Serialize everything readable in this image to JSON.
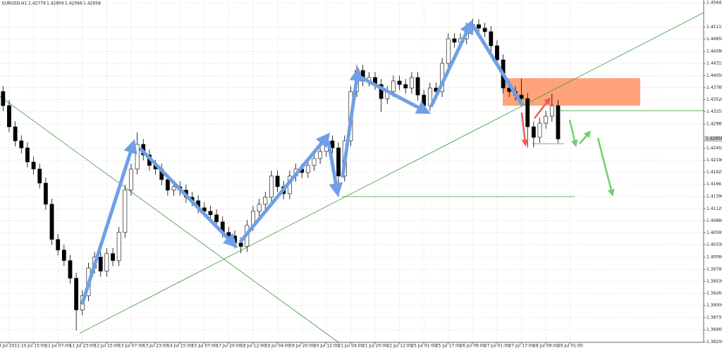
{
  "chart_data": {
    "type": "candlestick",
    "title": "EURUSD,H1",
    "header_values": [
      1.42779,
      1.42856,
      1.42566,
      1.42658
    ],
    "categories": [
      null,
      "8 Jul 2011",
      null,
      null,
      null,
      "10 Jul 15:00",
      null,
      null,
      null,
      "11 Jul 07:00",
      null,
      null,
      null,
      "11 Jul 23:00",
      null,
      null,
      null,
      "12 Jul 15:00",
      null,
      null,
      null,
      "13 Jul 07:00",
      null,
      null,
      null,
      "13 Jul 23:00",
      null,
      null,
      null,
      "14 Jul 15:00",
      null,
      null,
      null,
      "15 Jul 07:00",
      null,
      null,
      null,
      "17 Jul 20:00",
      null,
      null,
      null,
      "18 Jul 12:00",
      null,
      null,
      null,
      "19 Jul 04:00",
      null,
      null,
      null,
      "19 Jul 20:00",
      null,
      null,
      null,
      "20 Jul 12:00",
      null,
      null,
      null,
      "21 Jul 04:00",
      null,
      null,
      null,
      "21 Jul 20:00",
      null,
      null,
      null,
      "22 Jul 12:00",
      null,
      null,
      null,
      "25 Jul 01:00",
      null,
      null,
      null,
      "25 Jul 17:00",
      null,
      null,
      null,
      "26 Jul 09:00",
      null,
      null,
      null,
      "27 Jul 01:00",
      null,
      null,
      null,
      "27 Jul 17:00",
      null,
      null,
      null,
      "28 Jul 09:00",
      null,
      null,
      null,
      "29 Jul 01:00"
    ],
    "open": [
      1.437,
      1.4339,
      1.42925,
      1.42616,
      1.42461,
      1.42152,
      1.41997,
      1.41688,
      1.41224,
      1.4045,
      1.40218,
      1.39986,
      1.39599,
      1.38903,
      1.39213,
      1.39821,
      1.40063,
      1.39754,
      1.40141,
      1.39986,
      1.40605,
      1.41533,
      1.41997,
      1.42539,
      1.42307,
      1.42075,
      1.41997,
      1.41765,
      1.41533,
      1.4161,
      1.41533,
      1.41378,
      1.41301,
      1.41146,
      1.41069,
      1.40992,
      1.40837,
      1.40605,
      1.40528,
      1.40373,
      1.40296,
      1.4076,
      1.41069,
      1.41224,
      1.41378,
      1.41843,
      1.4161,
      1.41456,
      1.41843,
      1.41997,
      1.4192,
      1.42075,
      1.42229,
      1.42384,
      1.42616,
      1.42461,
      1.41843,
      1.42616,
      1.43699,
      1.44163,
      1.43931,
      1.44008,
      1.43854,
      1.43544,
      1.43699,
      1.43931,
      1.43854,
      1.43776,
      1.44008,
      1.43622,
      1.4339,
      1.43776,
      1.43699,
      1.44318,
      1.44859,
      1.44782,
      1.44859,
      1.45091,
      1.45169,
      1.45091,
      1.45014,
      1.44704,
      1.44395,
      1.43776,
      1.43699,
      1.43622,
      1.43544,
      1.42925,
      1.42693,
      1.43003,
      1.43157,
      1.4339,
      null,
      null
    ],
    "high": [
      1.4382,
      1.4351,
      1.43045,
      1.42736,
      1.42581,
      1.42272,
      1.42117,
      1.41808,
      1.41344,
      1.4057,
      1.40338,
      1.40106,
      1.39719,
      1.39333,
      1.39941,
      1.40183,
      1.40183,
      1.40261,
      1.40261,
      1.40725,
      1.41653,
      1.42117,
      1.428,
      1.42659,
      1.42427,
      1.42195,
      1.42117,
      1.41885,
      1.4173,
      1.4173,
      1.41653,
      1.41498,
      1.41421,
      1.41266,
      1.41189,
      1.41112,
      1.40957,
      1.40725,
      1.40648,
      1.40493,
      1.4088,
      1.41189,
      1.41344,
      1.41498,
      1.41963,
      1.41963,
      1.4173,
      1.41963,
      1.42117,
      1.42117,
      1.42195,
      1.42349,
      1.42504,
      1.42736,
      1.42736,
      1.42581,
      1.42736,
      1.43819,
      1.44283,
      1.44283,
      1.44128,
      1.44128,
      1.43974,
      1.43819,
      1.44051,
      1.44051,
      1.43974,
      1.44128,
      1.44128,
      1.43742,
      1.43896,
      1.43896,
      1.44438,
      1.44979,
      1.44979,
      1.44979,
      1.45211,
      1.453,
      1.45289,
      1.45211,
      1.45134,
      1.44824,
      1.44515,
      1.43896,
      1.43819,
      1.4398,
      1.43664,
      1.43045,
      1.43123,
      1.43277,
      1.4365,
      1.4351,
      null,
      null
    ],
    "low": [
      1.4327,
      1.42805,
      1.42496,
      1.42341,
      1.42032,
      1.41877,
      1.41568,
      1.41104,
      1.4033,
      1.40098,
      1.39866,
      1.39479,
      1.3845,
      1.38783,
      1.39093,
      1.39701,
      1.39634,
      1.39634,
      1.39866,
      1.39866,
      1.40485,
      1.41413,
      1.41877,
      1.42187,
      1.41955,
      1.41877,
      1.41645,
      1.41413,
      1.41413,
      1.41413,
      1.41258,
      1.41181,
      1.41026,
      1.40949,
      1.40872,
      1.40717,
      1.40485,
      1.40408,
      1.40253,
      1.4015,
      1.40176,
      1.4064,
      1.40949,
      1.41104,
      1.41258,
      1.4149,
      1.41336,
      1.41336,
      1.41723,
      1.418,
      1.418,
      1.41955,
      1.42109,
      1.42264,
      1.42341,
      1.4139,
      1.41723,
      1.42496,
      1.43579,
      1.43811,
      1.43811,
      1.43734,
      1.4325,
      1.43424,
      1.43579,
      1.43734,
      1.43656,
      1.43656,
      1.43502,
      1.4327,
      1.4327,
      1.43579,
      1.43579,
      1.44198,
      1.44662,
      1.44662,
      1.44739,
      1.44971,
      1.44971,
      1.44894,
      1.44584,
      1.44275,
      1.43656,
      1.43579,
      1.43502,
      1.43424,
      1.4247,
      1.4247,
      1.42573,
      1.42883,
      1.43037,
      1.42566,
      null,
      null
    ],
    "close": [
      1.4339,
      1.42925,
      1.42616,
      1.42461,
      1.42152,
      1.41997,
      1.41688,
      1.41224,
      1.4045,
      1.40218,
      1.39986,
      1.39599,
      1.38903,
      1.39213,
      1.39821,
      1.40063,
      1.39754,
      1.40141,
      1.39986,
      1.40605,
      1.41533,
      1.41997,
      1.42539,
      1.42307,
      1.42075,
      1.41997,
      1.41765,
      1.41533,
      1.4161,
      1.41533,
      1.41378,
      1.41301,
      1.41146,
      1.41069,
      1.40992,
      1.40837,
      1.40605,
      1.40528,
      1.40373,
      1.40296,
      1.4076,
      1.41069,
      1.41224,
      1.41378,
      1.41843,
      1.4161,
      1.41456,
      1.41843,
      1.41997,
      1.4192,
      1.42075,
      1.42229,
      1.42384,
      1.42616,
      1.42461,
      1.41843,
      1.42616,
      1.43699,
      1.44163,
      1.43931,
      1.44008,
      1.43854,
      1.43544,
      1.43699,
      1.43931,
      1.43854,
      1.43776,
      1.44008,
      1.43622,
      1.4339,
      1.43776,
      1.43699,
      1.44318,
      1.44859,
      1.44782,
      1.44859,
      1.45091,
      1.45169,
      1.45091,
      1.45014,
      1.44704,
      1.44395,
      1.43776,
      1.43699,
      1.43622,
      1.43544,
      1.42925,
      1.42693,
      1.43003,
      1.43157,
      1.4339,
      1.42658,
      null,
      null
    ],
    "ylim": [
      1.3819,
      1.4571
    ],
    "yticks": [
      1.45645,
      1.45115,
      {
        "value": 1.4485,
        "label": "1.44850"
      },
      {
        "value": 1.4458,
        "label": "1.44580"
      },
      1.44315,
      {
        "value": 1.4405,
        "label": "1.44050"
      },
      1.43785,
      {
        "value": 1.4352,
        "label": "1.43520"
      },
      1.43255,
      1.42985,
      1.42455,
      {
        "value": 1.4219,
        "label": "1.42190"
      },
      1.41925,
      1.4166,
      {
        "value": 1.4139,
        "label": "1.41390"
      },
      1.41125,
      {
        "value": 1.4086,
        "label": "1.40860"
      },
      1.40595,
      {
        "value": 1.4033,
        "label": "1.40330"
      },
      {
        "value": 1.4006,
        "label": "1.40060"
      },
      1.39795,
      {
        "value": 1.3953,
        "label": "1.39530"
      },
      1.39265,
      {
        "value": 1.39,
        "label": "1.39000"
      },
      1.38735,
      1.38465,
      {
        "value": 1.382,
        "label": "1.38200"
      }
    ],
    "grid": true,
    "bull_color": "#ffffff",
    "bear_color": "#000000",
    "wick_color": "#000000"
  }
}
